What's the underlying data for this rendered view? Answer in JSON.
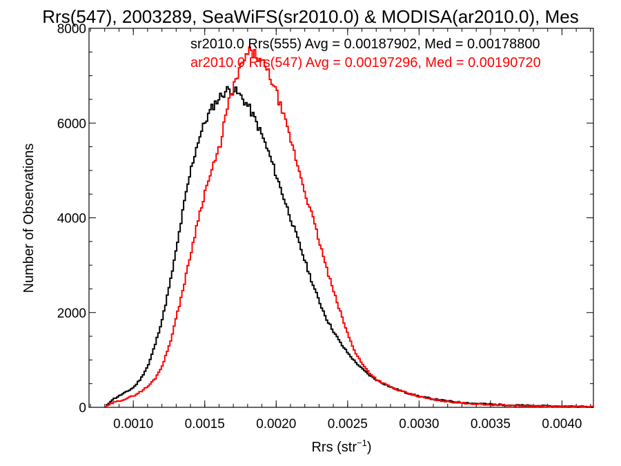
{
  "chart_data": {
    "type": "line",
    "title": "Rrs(547), 2003289, SeaWiFS(sr2010.0) & MODISA(ar2010.0), Mes",
    "xlabel": "Rrs (str",
    "xlabel_sup": "−1",
    "xlabel_close": ")",
    "ylabel": "Number of Observations",
    "xlim": [
      0.00069,
      0.00422
    ],
    "ylim": [
      0,
      8000
    ],
    "xticks": [
      0.001,
      0.0015,
      0.002,
      0.0025,
      0.003,
      0.0035,
      0.004
    ],
    "xtick_labels": [
      "0.0010",
      "0.0015",
      "0.0020",
      "0.0025",
      "0.0030",
      "0.0035",
      "0.0040"
    ],
    "yticks": [
      0,
      2000,
      4000,
      6000,
      8000
    ],
    "ytick_labels": [
      "0",
      "2000",
      "4000",
      "6000",
      "8000"
    ],
    "grid": false,
    "legend_position": "top-right",
    "colors": {
      "sr": "#000000",
      "ar": "#ff0000"
    },
    "series": [
      {
        "name": "sr2010.0 Rrs(555) Avg = 0.00187902, Med = 0.00178800",
        "color": "#000000",
        "points": [
          [
            0.0008,
            0
          ],
          [
            0.00084,
            150
          ],
          [
            0.0009,
            250
          ],
          [
            0.00095,
            330
          ],
          [
            0.001,
            430
          ],
          [
            0.00105,
            620
          ],
          [
            0.0011,
            900
          ],
          [
            0.00115,
            1350
          ],
          [
            0.0012,
            1900
          ],
          [
            0.00125,
            2600
          ],
          [
            0.0013,
            3400
          ],
          [
            0.00135,
            4300
          ],
          [
            0.0014,
            5050
          ],
          [
            0.00145,
            5650
          ],
          [
            0.0015,
            6050
          ],
          [
            0.00155,
            6350
          ],
          [
            0.0016,
            6550
          ],
          [
            0.00165,
            6700
          ],
          [
            0.0017,
            6700
          ],
          [
            0.00175,
            6550
          ],
          [
            0.0018,
            6350
          ],
          [
            0.00185,
            6050
          ],
          [
            0.0019,
            5700
          ],
          [
            0.00195,
            5300
          ],
          [
            0.002,
            4850
          ],
          [
            0.00205,
            4400
          ],
          [
            0.0021,
            3950
          ],
          [
            0.00215,
            3500
          ],
          [
            0.0022,
            3050
          ],
          [
            0.00225,
            2600
          ],
          [
            0.0023,
            2200
          ],
          [
            0.00235,
            1850
          ],
          [
            0.0024,
            1580
          ],
          [
            0.00245,
            1330
          ],
          [
            0.0025,
            1130
          ],
          [
            0.00255,
            950
          ],
          [
            0.0026,
            800
          ],
          [
            0.00265,
            670
          ],
          [
            0.0027,
            570
          ],
          [
            0.0028,
            420
          ],
          [
            0.0029,
            310
          ],
          [
            0.003,
            230
          ],
          [
            0.0031,
            170
          ],
          [
            0.0032,
            130
          ],
          [
            0.0033,
            100
          ],
          [
            0.0034,
            80
          ],
          [
            0.0035,
            65
          ],
          [
            0.0036,
            50
          ],
          [
            0.0037,
            40
          ],
          [
            0.0038,
            32
          ],
          [
            0.0039,
            26
          ],
          [
            0.004,
            20
          ],
          [
            0.0041,
            16
          ],
          [
            0.0042,
            12
          ]
        ]
      },
      {
        "name": "ar2010.0 Rrs(547) Avg = 0.00197296, Med = 0.00190720",
        "color": "#ff0000",
        "points": [
          [
            0.0008,
            0
          ],
          [
            0.00084,
            80
          ],
          [
            0.0009,
            140
          ],
          [
            0.00095,
            190
          ],
          [
            0.001,
            250
          ],
          [
            0.00105,
            340
          ],
          [
            0.0011,
            450
          ],
          [
            0.00115,
            620
          ],
          [
            0.0012,
            900
          ],
          [
            0.00125,
            1350
          ],
          [
            0.0013,
            1950
          ],
          [
            0.00135,
            2600
          ],
          [
            0.0014,
            3300
          ],
          [
            0.00145,
            4000
          ],
          [
            0.0015,
            4600
          ],
          [
            0.00155,
            5050
          ],
          [
            0.0016,
            5500
          ],
          [
            0.00163,
            6000
          ],
          [
            0.00166,
            6400
          ],
          [
            0.0017,
            6800
          ],
          [
            0.00175,
            7200
          ],
          [
            0.0018,
            7500
          ],
          [
            0.00185,
            7450
          ],
          [
            0.0019,
            7250
          ],
          [
            0.00195,
            7000
          ],
          [
            0.002,
            6600
          ],
          [
            0.00205,
            6100
          ],
          [
            0.0021,
            5600
          ],
          [
            0.00215,
            5050
          ],
          [
            0.0022,
            4500
          ],
          [
            0.00225,
            4000
          ],
          [
            0.0023,
            3450
          ],
          [
            0.00235,
            2900
          ],
          [
            0.0024,
            2400
          ],
          [
            0.00245,
            1950
          ],
          [
            0.0025,
            1500
          ],
          [
            0.00255,
            1150
          ],
          [
            0.0026,
            900
          ],
          [
            0.00265,
            720
          ],
          [
            0.0027,
            580
          ],
          [
            0.0028,
            420
          ],
          [
            0.0029,
            310
          ],
          [
            0.003,
            220
          ],
          [
            0.0031,
            160
          ],
          [
            0.0032,
            120
          ],
          [
            0.0033,
            90
          ],
          [
            0.0034,
            70
          ],
          [
            0.0035,
            55
          ],
          [
            0.0036,
            42
          ],
          [
            0.0037,
            33
          ],
          [
            0.0038,
            26
          ],
          [
            0.0039,
            20
          ],
          [
            0.004,
            16
          ],
          [
            0.0041,
            12
          ],
          [
            0.0042,
            10
          ]
        ]
      }
    ]
  }
}
